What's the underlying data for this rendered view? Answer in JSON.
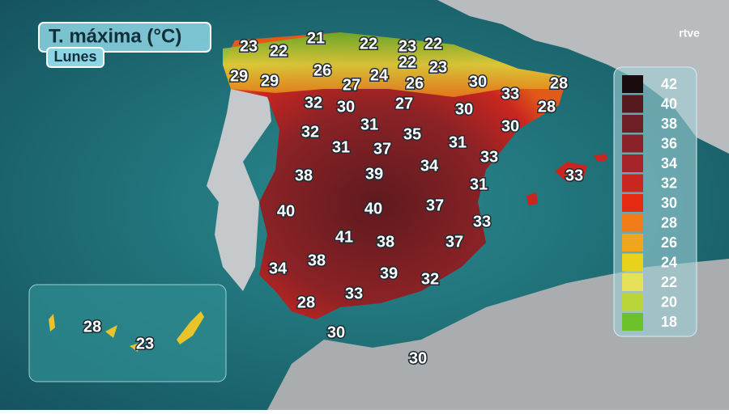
{
  "header": {
    "title": "T. máxima (°C)",
    "day": "Lunes",
    "logo": "rtve"
  },
  "legend": {
    "values": [
      42,
      40,
      38,
      36,
      34,
      32,
      30,
      28,
      26,
      24,
      22,
      20,
      18
    ],
    "colors": [
      "#1a0c0c",
      "#561a1e",
      "#6e1e25",
      "#8a2028",
      "#a6232a",
      "#c8261f",
      "#e62a12",
      "#f07d1a",
      "#f0a51e",
      "#e8d21a",
      "#e6e05a",
      "#b8d63a",
      "#6cc02a"
    ]
  },
  "map_labels": [
    23,
    21,
    22,
    23,
    22,
    22,
    22,
    23,
    29,
    29,
    26,
    24,
    26,
    27,
    30,
    33,
    28,
    28,
    32,
    30,
    27,
    30,
    30,
    32,
    31,
    35,
    31,
    37,
    31,
    33,
    33,
    38,
    39,
    34,
    31,
    40,
    40,
    37,
    33,
    41,
    38,
    37,
    34,
    38,
    39,
    32,
    33,
    28,
    30,
    30
  ],
  "canary_labels": [
    28,
    23
  ]
}
